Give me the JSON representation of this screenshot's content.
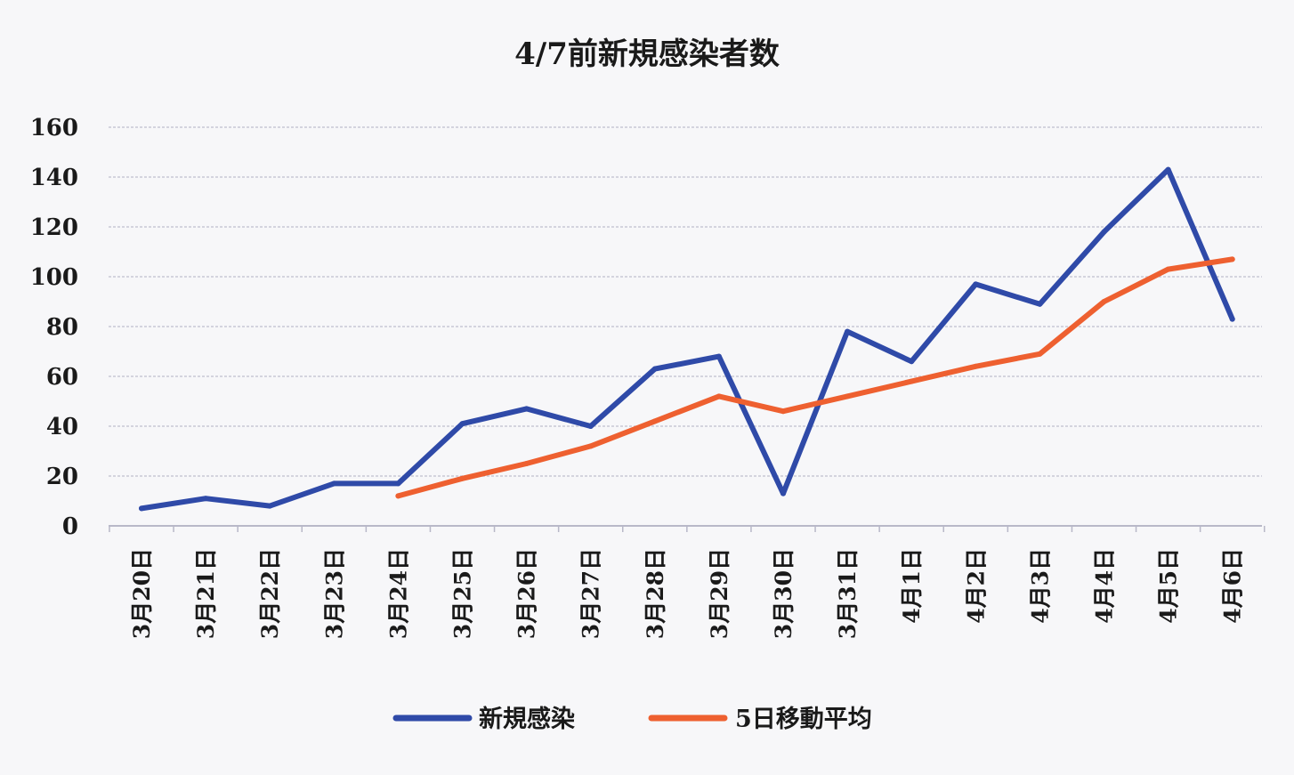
{
  "chart_data": {
    "type": "line",
    "title": "4/7前新規感染者数",
    "xlabel": "",
    "ylabel": "",
    "categories": [
      "3月20日",
      "3月21日",
      "3月22日",
      "3月23日",
      "3月24日",
      "3月25日",
      "3月26日",
      "3月27日",
      "3月28日",
      "3月29日",
      "3月30日",
      "3月31日",
      "4月1日",
      "4月2日",
      "4月3日",
      "4月4日",
      "4月5日",
      "4月6日"
    ],
    "ylim": [
      0,
      160
    ],
    "yticks": [
      0,
      20,
      40,
      60,
      80,
      100,
      120,
      140,
      160
    ],
    "grid": true,
    "legend_position": "bottom",
    "series": [
      {
        "name": "新規感染",
        "color": "#2f4aa8",
        "values": [
          7,
          11,
          8,
          17,
          17,
          41,
          47,
          40,
          63,
          68,
          13,
          78,
          66,
          97,
          89,
          118,
          143,
          83
        ]
      },
      {
        "name": "5日移動平均",
        "color": "#ee6030",
        "values": [
          null,
          null,
          null,
          null,
          12,
          19,
          25,
          32,
          42,
          52,
          46,
          52,
          58,
          64,
          69,
          90,
          103,
          107
        ]
      }
    ]
  }
}
